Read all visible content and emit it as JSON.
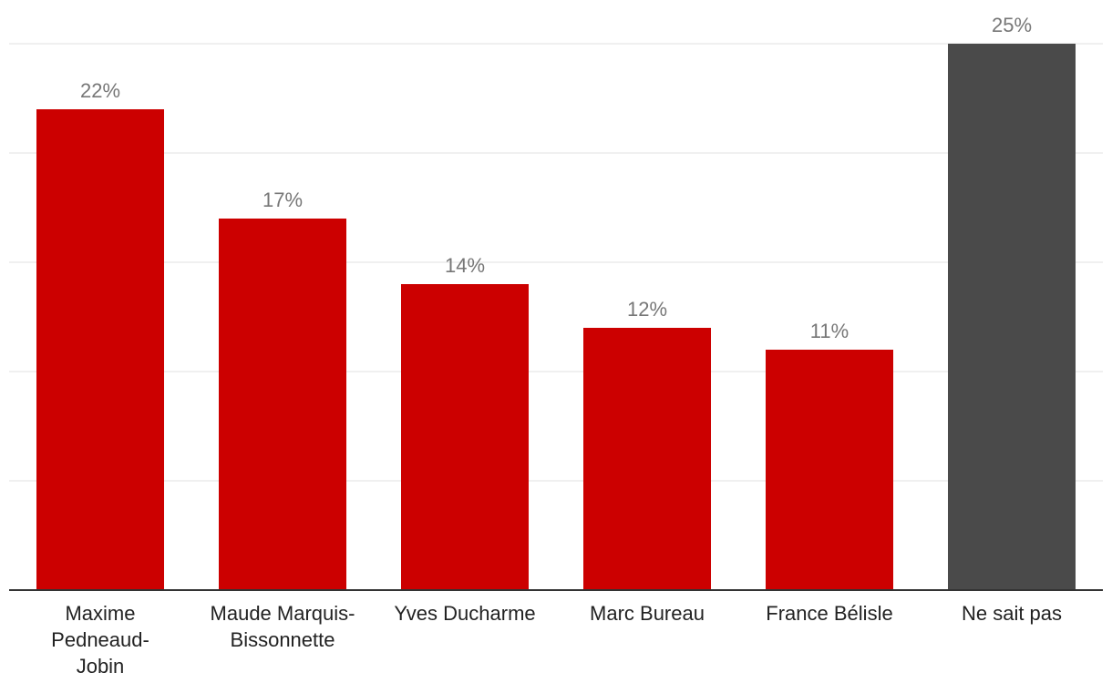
{
  "chart_data": {
    "type": "bar",
    "categories": [
      [
        "Maxime",
        "Pedneaud-",
        "Jobin"
      ],
      [
        "Maude Marquis-",
        "Bissonnette"
      ],
      [
        "Yves Ducharme"
      ],
      [
        "Marc Bureau"
      ],
      [
        "France Bélisle"
      ],
      [
        "Ne sait pas"
      ]
    ],
    "values": [
      22,
      17,
      14,
      12,
      11,
      25
    ],
    "value_labels": [
      "22%",
      "17%",
      "14%",
      "12%",
      "11%",
      "25%"
    ],
    "bar_colors": [
      "#cc0000",
      "#cc0000",
      "#cc0000",
      "#cc0000",
      "#cc0000",
      "#4a4a4a"
    ],
    "ylim": [
      0,
      25
    ],
    "grid": true,
    "legend": "none",
    "title": "",
    "xlabel": "",
    "ylabel": ""
  },
  "colors": {
    "candidate": "#cc0000",
    "undecided": "#4a4a4a",
    "gridline": "#e0e0e0",
    "axis": "#333333",
    "value_label": "#777777",
    "category_label": "#222222"
  }
}
